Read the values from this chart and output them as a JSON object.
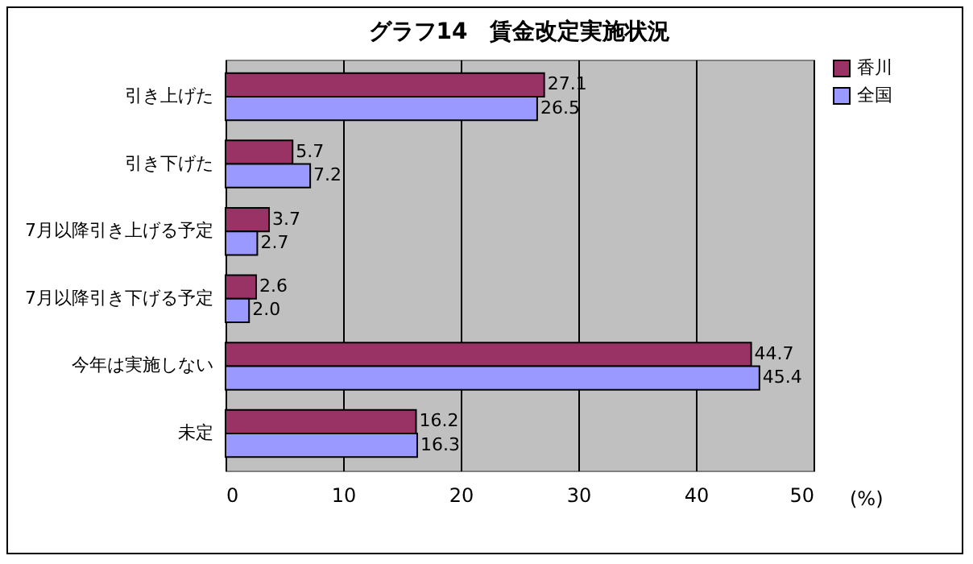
{
  "chart_data": {
    "type": "bar",
    "orientation": "horizontal",
    "title": "グラフ14　賃金改定実施状況",
    "xlabel": "(%)",
    "categories": [
      "引き上げた",
      "引き下げた",
      "7月以降引き上げる予定",
      "7月以降引き下げる予定",
      "今年は実施しない",
      "未定"
    ],
    "series": [
      {
        "name": "香川",
        "color": "#993366",
        "values": [
          27.1,
          5.7,
          3.7,
          2.6,
          44.7,
          16.2
        ],
        "value_labels": [
          "27.1",
          "5.7",
          "3.7",
          "2.6",
          "44.7",
          "16.2"
        ]
      },
      {
        "name": "全国",
        "color": "#9999ff",
        "values": [
          26.5,
          7.2,
          2.7,
          2.0,
          45.4,
          16.3
        ],
        "value_labels": [
          "26.5",
          "7.2",
          "2.7",
          "2.0",
          "45.4",
          "16.3"
        ]
      }
    ],
    "xlim": [
      0,
      50
    ],
    "xticks": [
      0,
      10,
      20,
      30,
      40,
      50
    ],
    "grid": "x",
    "legend": "right"
  }
}
